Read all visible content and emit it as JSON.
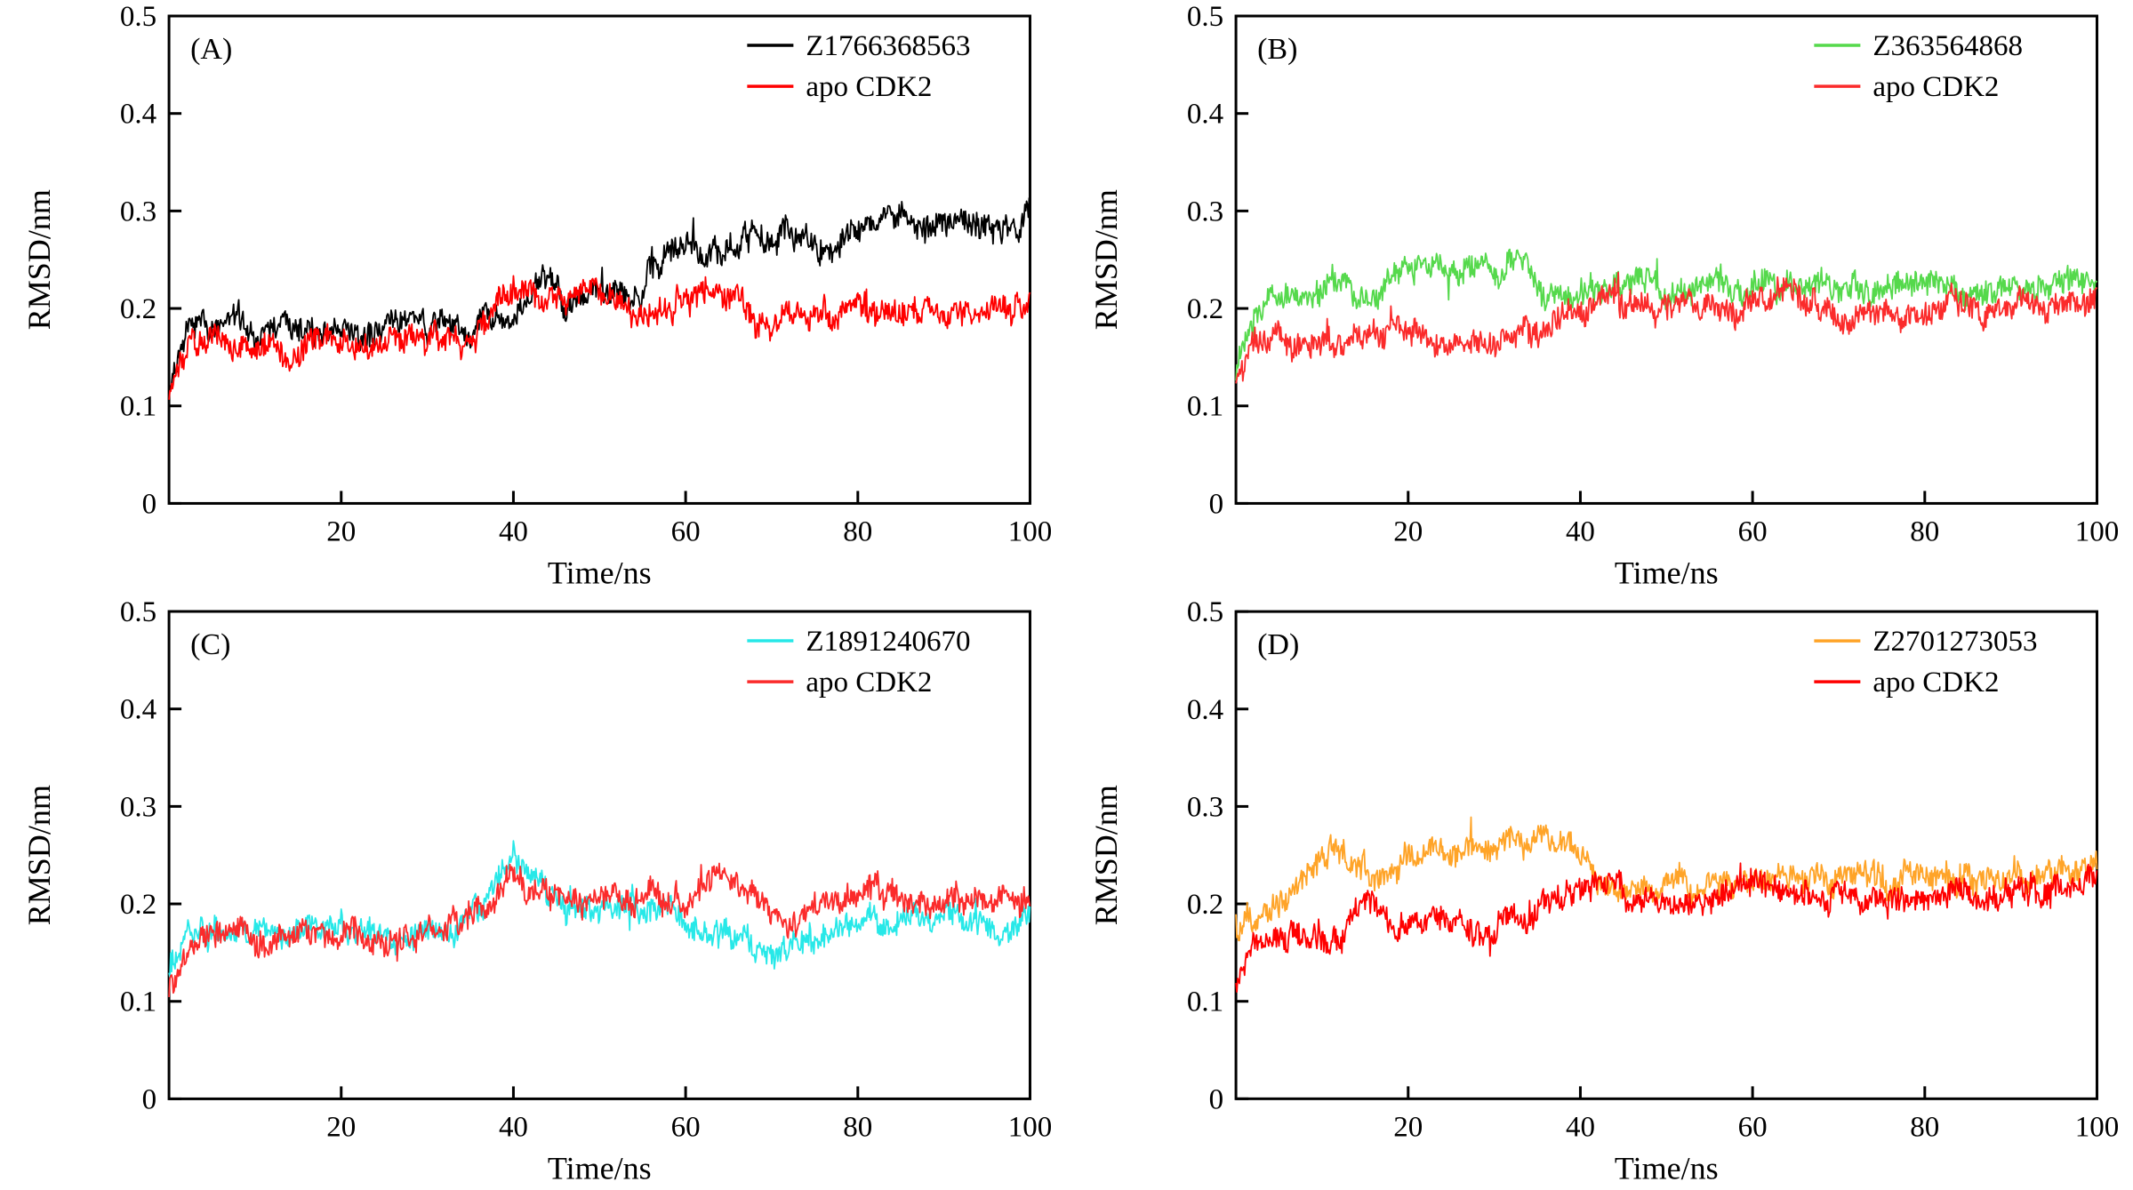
{
  "figure": {
    "background": "#ffffff",
    "panel_count": 4
  },
  "chart_data": [
    {
      "type": "line",
      "panel_label": "(A)",
      "xlabel": "Time/ns",
      "ylabel": "RMSD/nm",
      "xlim": [
        0,
        100
      ],
      "ylim": [
        0,
        0.5
      ],
      "xticks": [
        20,
        40,
        60,
        80,
        100
      ],
      "xtick_labels": [
        "20",
        "40",
        "60",
        "80",
        "100"
      ],
      "yticks": [
        0,
        0.1,
        0.2,
        0.3,
        0.4,
        0.5
      ],
      "ytick_labels": [
        "0",
        "0.1",
        "0.2",
        "0.3",
        "0.4",
        "0.5"
      ],
      "legend_position": "top-right",
      "grid": false,
      "x_ns": [
        0,
        2,
        4,
        6,
        8,
        10,
        12,
        14,
        16,
        18,
        20,
        22,
        24,
        26,
        28,
        30,
        32,
        34,
        36,
        38,
        40,
        42,
        44,
        46,
        48,
        50,
        52,
        54,
        56,
        58,
        60,
        62,
        64,
        66,
        68,
        70,
        72,
        74,
        76,
        78,
        80,
        82,
        84,
        86,
        88,
        90,
        92,
        94,
        96,
        98,
        100
      ],
      "series": [
        {
          "name": "Z1766368563",
          "color": "#000000",
          "y_nm": [
            0.12,
            0.17,
            0.175,
            0.18,
            0.19,
            0.18,
            0.175,
            0.18,
            0.175,
            0.17,
            0.175,
            0.17,
            0.175,
            0.185,
            0.19,
            0.18,
            0.19,
            0.18,
            0.19,
            0.2,
            0.195,
            0.2,
            0.24,
            0.215,
            0.215,
            0.22,
            0.215,
            0.22,
            0.24,
            0.255,
            0.26,
            0.255,
            0.265,
            0.265,
            0.275,
            0.265,
            0.265,
            0.27,
            0.26,
            0.275,
            0.285,
            0.295,
            0.3,
            0.29,
            0.28,
            0.285,
            0.29,
            0.28,
            0.29,
            0.285,
            0.3
          ]
        },
        {
          "name": "apo CDK2",
          "color": "#ff0000",
          "y_nm": [
            0.11,
            0.16,
            0.17,
            0.165,
            0.17,
            0.16,
            0.165,
            0.155,
            0.16,
            0.165,
            0.16,
            0.165,
            0.16,
            0.17,
            0.165,
            0.17,
            0.175,
            0.17,
            0.18,
            0.2,
            0.22,
            0.225,
            0.21,
            0.215,
            0.22,
            0.215,
            0.21,
            0.19,
            0.195,
            0.2,
            0.21,
            0.215,
            0.22,
            0.21,
            0.19,
            0.19,
            0.195,
            0.19,
            0.195,
            0.19,
            0.2,
            0.2,
            0.195,
            0.2,
            0.19,
            0.195,
            0.2,
            0.195,
            0.2,
            0.2,
            0.21
          ]
        }
      ]
    },
    {
      "type": "line",
      "panel_label": "(B)",
      "xlabel": "Time/ns",
      "ylabel": "RMSD/nm",
      "xlim": [
        0,
        100
      ],
      "ylim": [
        0,
        0.5
      ],
      "xticks": [
        20,
        40,
        60,
        80,
        100
      ],
      "xtick_labels": [
        "20",
        "40",
        "60",
        "80",
        "100"
      ],
      "yticks": [
        0,
        0.1,
        0.2,
        0.3,
        0.4,
        0.5
      ],
      "ytick_labels": [
        "0",
        "0.1",
        "0.2",
        "0.3",
        "0.4",
        "0.5"
      ],
      "legend_position": "top-right",
      "grid": false,
      "x_ns": [
        0,
        2,
        4,
        6,
        8,
        10,
        12,
        14,
        16,
        18,
        20,
        22,
        24,
        26,
        28,
        30,
        32,
        34,
        36,
        38,
        40,
        42,
        44,
        46,
        48,
        50,
        52,
        54,
        56,
        58,
        60,
        62,
        64,
        66,
        68,
        70,
        72,
        74,
        76,
        78,
        80,
        82,
        84,
        86,
        88,
        90,
        92,
        94,
        96,
        98,
        100
      ],
      "series": [
        {
          "name": "Z363564868",
          "color": "#55d94c",
          "y_nm": [
            0.13,
            0.19,
            0.21,
            0.215,
            0.21,
            0.215,
            0.22,
            0.21,
            0.215,
            0.23,
            0.245,
            0.25,
            0.235,
            0.23,
            0.235,
            0.24,
            0.25,
            0.245,
            0.22,
            0.21,
            0.215,
            0.22,
            0.225,
            0.235,
            0.23,
            0.22,
            0.225,
            0.22,
            0.225,
            0.22,
            0.225,
            0.23,
            0.225,
            0.22,
            0.225,
            0.22,
            0.225,
            0.22,
            0.225,
            0.23,
            0.225,
            0.22,
            0.225,
            0.23,
            0.225,
            0.23,
            0.225,
            0.23,
            0.225,
            0.22,
            0.22
          ]
        },
        {
          "name": "apo CDK2",
          "color": "#fb2b2b",
          "y_nm": [
            0.12,
            0.16,
            0.165,
            0.17,
            0.16,
            0.155,
            0.16,
            0.17,
            0.18,
            0.185,
            0.17,
            0.165,
            0.16,
            0.165,
            0.17,
            0.165,
            0.17,
            0.18,
            0.185,
            0.19,
            0.2,
            0.21,
            0.215,
            0.21,
            0.205,
            0.2,
            0.205,
            0.2,
            0.195,
            0.2,
            0.21,
            0.22,
            0.22,
            0.21,
            0.2,
            0.19,
            0.195,
            0.2,
            0.195,
            0.19,
            0.2,
            0.205,
            0.2,
            0.195,
            0.2,
            0.21,
            0.205,
            0.2,
            0.205,
            0.21,
            0.215
          ]
        }
      ]
    },
    {
      "type": "line",
      "panel_label": "(C)",
      "xlabel": "Time/ns",
      "ylabel": "RMSD/nm",
      "xlim": [
        0,
        100
      ],
      "ylim": [
        0,
        0.5
      ],
      "xticks": [
        20,
        40,
        60,
        80,
        100
      ],
      "xtick_labels": [
        "20",
        "40",
        "60",
        "80",
        "100"
      ],
      "yticks": [
        0,
        0.1,
        0.2,
        0.3,
        0.4,
        0.5
      ],
      "ytick_labels": [
        "0",
        "0.1",
        "0.2",
        "0.3",
        "0.4",
        "0.5"
      ],
      "legend_position": "top-right",
      "grid": false,
      "x_ns": [
        0,
        2,
        4,
        6,
        8,
        10,
        12,
        14,
        16,
        18,
        20,
        22,
        24,
        26,
        28,
        30,
        32,
        34,
        36,
        38,
        40,
        42,
        44,
        46,
        48,
        50,
        52,
        54,
        56,
        58,
        60,
        62,
        64,
        66,
        68,
        70,
        72,
        74,
        76,
        78,
        80,
        82,
        84,
        86,
        88,
        90,
        92,
        94,
        96,
        98,
        100
      ],
      "series": [
        {
          "name": "Z1891240670",
          "color": "#27e8e8",
          "y_nm": [
            0.13,
            0.17,
            0.175,
            0.17,
            0.165,
            0.17,
            0.175,
            0.17,
            0.18,
            0.175,
            0.17,
            0.175,
            0.17,
            0.175,
            0.17,
            0.175,
            0.17,
            0.18,
            0.19,
            0.22,
            0.245,
            0.225,
            0.21,
            0.2,
            0.195,
            0.2,
            0.195,
            0.2,
            0.2,
            0.195,
            0.185,
            0.17,
            0.165,
            0.16,
            0.15,
            0.145,
            0.15,
            0.16,
            0.17,
            0.175,
            0.18,
            0.185,
            0.18,
            0.185,
            0.18,
            0.185,
            0.18,
            0.185,
            0.18,
            0.175,
            0.175
          ]
        },
        {
          "name": "apo CDK2",
          "color": "#fb2b2b",
          "y_nm": [
            0.11,
            0.155,
            0.165,
            0.17,
            0.165,
            0.16,
            0.165,
            0.17,
            0.165,
            0.17,
            0.165,
            0.17,
            0.165,
            0.17,
            0.175,
            0.17,
            0.175,
            0.18,
            0.19,
            0.21,
            0.225,
            0.22,
            0.21,
            0.205,
            0.21,
            0.205,
            0.2,
            0.205,
            0.21,
            0.205,
            0.2,
            0.215,
            0.23,
            0.225,
            0.21,
            0.195,
            0.19,
            0.2,
            0.205,
            0.2,
            0.205,
            0.2,
            0.205,
            0.2,
            0.205,
            0.2,
            0.205,
            0.2,
            0.205,
            0.21,
            0.21
          ]
        }
      ]
    },
    {
      "type": "line",
      "panel_label": "(D)",
      "xlabel": "Time/ns",
      "ylabel": "RMSD/nm",
      "xlim": [
        0,
        100
      ],
      "ylim": [
        0,
        0.5
      ],
      "xticks": [
        20,
        40,
        60,
        80,
        100
      ],
      "xtick_labels": [
        "20",
        "40",
        "60",
        "80",
        "100"
      ],
      "yticks": [
        0,
        0.1,
        0.2,
        0.3,
        0.4,
        0.5
      ],
      "ytick_labels": [
        "0",
        "0.1",
        "0.2",
        "0.3",
        "0.4",
        "0.5"
      ],
      "legend_position": "top-right",
      "grid": false,
      "x_ns": [
        0,
        2,
        4,
        6,
        8,
        10,
        12,
        14,
        16,
        18,
        20,
        22,
        24,
        26,
        28,
        30,
        32,
        34,
        36,
        38,
        40,
        42,
        44,
        46,
        48,
        50,
        52,
        54,
        56,
        58,
        60,
        62,
        64,
        66,
        68,
        70,
        72,
        74,
        76,
        78,
        80,
        82,
        84,
        86,
        88,
        90,
        92,
        94,
        96,
        98,
        100
      ],
      "series": [
        {
          "name": "Z2701273053",
          "color": "#ffa428",
          "y_nm": [
            0.18,
            0.195,
            0.2,
            0.21,
            0.22,
            0.245,
            0.26,
            0.245,
            0.225,
            0.235,
            0.25,
            0.25,
            0.245,
            0.25,
            0.255,
            0.26,
            0.255,
            0.26,
            0.27,
            0.265,
            0.255,
            0.22,
            0.215,
            0.21,
            0.215,
            0.21,
            0.215,
            0.22,
            0.225,
            0.22,
            0.225,
            0.23,
            0.225,
            0.22,
            0.225,
            0.22,
            0.225,
            0.23,
            0.225,
            0.23,
            0.235,
            0.23,
            0.225,
            0.23,
            0.225,
            0.23,
            0.225,
            0.23,
            0.225,
            0.23,
            0.235
          ]
        },
        {
          "name": "apo CDK2",
          "color": "#ff0000",
          "y_nm": [
            0.12,
            0.16,
            0.17,
            0.175,
            0.17,
            0.16,
            0.15,
            0.19,
            0.2,
            0.175,
            0.18,
            0.175,
            0.18,
            0.175,
            0.17,
            0.175,
            0.18,
            0.185,
            0.19,
            0.2,
            0.215,
            0.225,
            0.215,
            0.21,
            0.205,
            0.21,
            0.205,
            0.2,
            0.21,
            0.215,
            0.22,
            0.215,
            0.22,
            0.21,
            0.205,
            0.21,
            0.205,
            0.21,
            0.205,
            0.2,
            0.21,
            0.215,
            0.21,
            0.205,
            0.21,
            0.215,
            0.21,
            0.215,
            0.21,
            0.215,
            0.22
          ]
        }
      ]
    }
  ]
}
